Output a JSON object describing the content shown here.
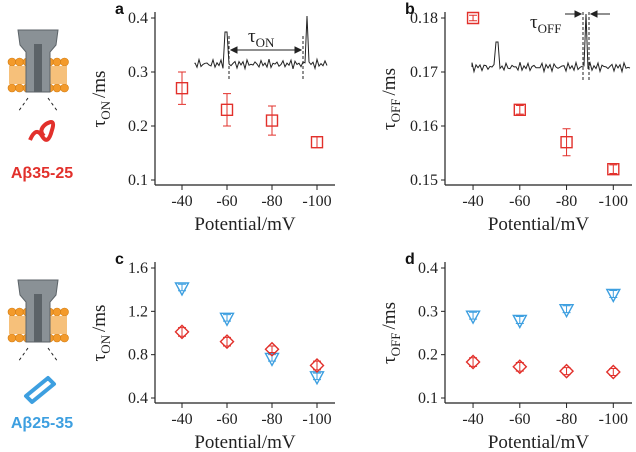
{
  "illustrations": [
    {
      "label": "Aβ35-25",
      "color": "#e2302b"
    },
    {
      "label": "Aβ25-35",
      "color": "#3d9fe0"
    }
  ],
  "chart_data": [
    {
      "type": "scatter",
      "panel": "a",
      "ylabel": "τ",
      "ylabel_sub": "ON",
      "ylabel_unit": "/ms",
      "xlabel": "Potential/mV",
      "annotation": "τ",
      "annotation_sub": "ON",
      "xlim": [
        -28,
        -108
      ],
      "ylim": [
        0.1,
        0.4
      ],
      "xticks": [
        -40,
        -60,
        -80,
        -100
      ],
      "yticks": [
        0.1,
        0.2,
        0.3,
        0.4
      ],
      "series": [
        {
          "color": "#e2302b",
          "marker": "square",
          "x": [
            -40,
            -60,
            -80,
            -100
          ],
          "values": [
            0.27,
            0.23,
            0.21,
            0.17
          ],
          "errors": [
            0.03,
            0.03,
            0.027,
            0.01
          ]
        }
      ]
    },
    {
      "type": "scatter",
      "panel": "b",
      "ylabel": "τ",
      "ylabel_sub": "OFF",
      "ylabel_unit": "/ms",
      "xlabel": "Potential/mV",
      "annotation": "τ",
      "annotation_sub": "OFF",
      "xlim": [
        -28,
        -108
      ],
      "ylim": [
        0.15,
        0.18
      ],
      "xticks": [
        -40,
        -60,
        -80,
        -100
      ],
      "yticks": [
        0.15,
        0.16,
        0.17,
        0.18
      ],
      "series": [
        {
          "color": "#e2302b",
          "marker": "square",
          "x": [
            -40,
            -60,
            -80,
            -100
          ],
          "values": [
            0.18,
            0.163,
            0.157,
            0.152
          ],
          "errors": [
            0.0005,
            0.0008,
            0.0025,
            0.0008
          ]
        }
      ]
    },
    {
      "type": "scatter",
      "panel": "c",
      "ylabel": "τ",
      "ylabel_sub": "ON",
      "ylabel_unit": "/ms",
      "xlabel": "Potential/mV",
      "xlim": [
        -28,
        -108
      ],
      "ylim": [
        0.4,
        1.6
      ],
      "xticks": [
        -40,
        -60,
        -80,
        -100
      ],
      "yticks": [
        0.4,
        0.8,
        1.2,
        1.6
      ],
      "series": [
        {
          "color": "#3d9fe0",
          "marker": "triangle-down",
          "x": [
            -40,
            -60,
            -80,
            -100
          ],
          "values": [
            1.42,
            1.14,
            0.77,
            0.6
          ],
          "errors": [
            0.03,
            0.03,
            0.03,
            0.03
          ]
        },
        {
          "color": "#e2302b",
          "marker": "diamond",
          "x": [
            -40,
            -60,
            -80,
            -100
          ],
          "values": [
            1.01,
            0.92,
            0.85,
            0.7
          ],
          "errors": [
            0.04,
            0.04,
            0.03,
            0.04
          ]
        }
      ]
    },
    {
      "type": "scatter",
      "panel": "d",
      "ylabel": "τ",
      "ylabel_sub": "OFF",
      "ylabel_unit": "/ms",
      "xlabel": "Potential/mV",
      "xlim": [
        -28,
        -108
      ],
      "ylim": [
        0.1,
        0.4
      ],
      "xticks": [
        -40,
        -60,
        -80,
        -100
      ],
      "yticks": [
        0.1,
        0.2,
        0.3,
        0.4
      ],
      "series": [
        {
          "color": "#3d9fe0",
          "marker": "triangle-down",
          "x": [
            -40,
            -60,
            -80,
            -100
          ],
          "values": [
            0.29,
            0.28,
            0.305,
            0.34
          ],
          "errors": [
            0.008,
            0.008,
            0.008,
            0.008
          ]
        },
        {
          "color": "#e2302b",
          "marker": "diamond",
          "x": [
            -40,
            -60,
            -80,
            -100
          ],
          "values": [
            0.183,
            0.172,
            0.162,
            0.16
          ],
          "errors": [
            0.01,
            0.01,
            0.008,
            0.008
          ]
        }
      ]
    }
  ]
}
